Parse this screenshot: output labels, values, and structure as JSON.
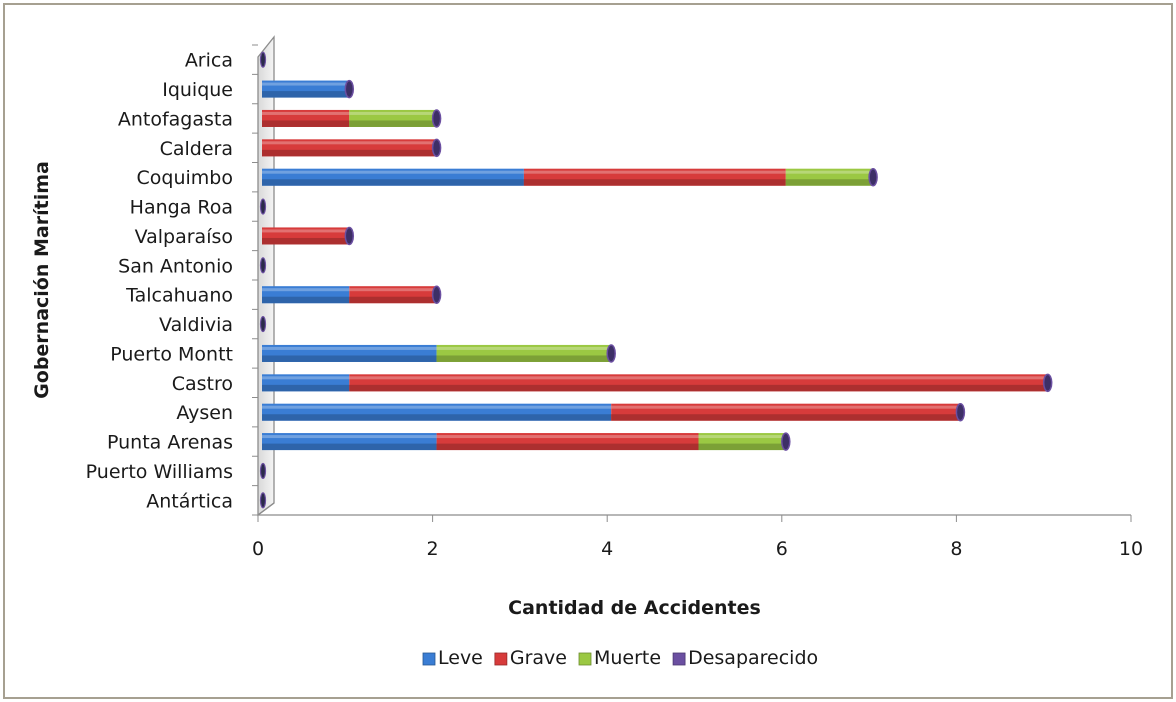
{
  "chart_data": {
    "type": "bar",
    "orientation": "horizontal",
    "stacked": true,
    "title": "",
    "xlabel": "Cantidad de Accidentes",
    "ylabel": "Gobernación Marítima",
    "xlim": [
      0,
      10
    ],
    "xticks": [
      "0",
      "2",
      "4",
      "6",
      "8",
      "10"
    ],
    "grid": false,
    "legend_position": "bottom",
    "categories": [
      "Arica",
      "Iquique",
      "Antofagasta",
      "Caldera",
      "Coquimbo",
      "Hanga Roa",
      "Valparaíso",
      "San Antonio",
      "Talcahuano",
      "Valdivia",
      "Puerto Montt",
      "Castro",
      "Aysen",
      "Punta Arenas",
      "Puerto Williams",
      "Antártica"
    ],
    "series": [
      {
        "name": "Leve",
        "color": "#3a7dd4",
        "values": [
          0,
          1,
          0,
          0,
          3,
          0,
          0,
          0,
          1,
          0,
          2,
          1,
          4,
          2,
          0,
          0
        ]
      },
      {
        "name": "Grave",
        "color": "#d73b3b",
        "values": [
          0,
          0,
          1,
          2,
          3,
          0,
          1,
          0,
          1,
          0,
          0,
          8,
          4,
          3,
          0,
          0
        ]
      },
      {
        "name": "Muerte",
        "color": "#9bc843",
        "values": [
          0,
          0,
          1,
          0,
          1,
          0,
          0,
          0,
          0,
          0,
          2,
          0,
          0,
          1,
          0,
          0
        ]
      },
      {
        "name": "Desaparecido",
        "color": "#6b4fa1",
        "values": [
          0,
          0,
          0,
          0,
          0,
          0,
          0,
          0,
          0,
          0,
          0,
          0,
          0,
          0,
          0,
          0
        ]
      }
    ]
  }
}
